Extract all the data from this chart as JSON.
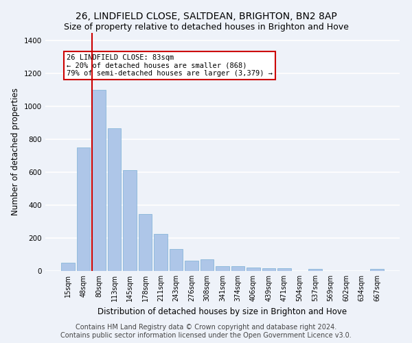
{
  "title1": "26, LINDFIELD CLOSE, SALTDEAN, BRIGHTON, BN2 8AP",
  "title2": "Size of property relative to detached houses in Brighton and Hove",
  "xlabel": "Distribution of detached houses by size in Brighton and Hove",
  "ylabel": "Number of detached properties",
  "categories": [
    "15sqm",
    "48sqm",
    "80sqm",
    "113sqm",
    "145sqm",
    "178sqm",
    "211sqm",
    "243sqm",
    "276sqm",
    "308sqm",
    "341sqm",
    "374sqm",
    "406sqm",
    "439sqm",
    "471sqm",
    "504sqm",
    "537sqm",
    "569sqm",
    "602sqm",
    "634sqm",
    "667sqm"
  ],
  "values": [
    50,
    750,
    1100,
    868,
    615,
    345,
    225,
    135,
    62,
    70,
    30,
    30,
    22,
    15,
    17,
    0,
    12,
    0,
    0,
    0,
    12
  ],
  "bar_color": "#aec6e8",
  "bar_edge_color": "#7bafd4",
  "vline_color": "#cc0000",
  "annotation_text": "26 LINDFIELD CLOSE: 83sqm\n← 20% of detached houses are smaller (868)\n79% of semi-detached houses are larger (3,379) →",
  "annotation_box_color": "#ffffff",
  "annotation_box_edge": "#cc0000",
  "ylim": [
    0,
    1450
  ],
  "yticks": [
    0,
    200,
    400,
    600,
    800,
    1000,
    1200,
    1400
  ],
  "footer1": "Contains HM Land Registry data © Crown copyright and database right 2024.",
  "footer2": "Contains public sector information licensed under the Open Government Licence v3.0.",
  "bg_color": "#eef2f9",
  "grid_color": "#ffffff",
  "title1_fontsize": 10,
  "title2_fontsize": 9,
  "xlabel_fontsize": 8.5,
  "ylabel_fontsize": 8.5,
  "tick_fontsize": 7,
  "ytick_fontsize": 7.5,
  "footer_fontsize": 7,
  "annotation_fontsize": 7.5
}
